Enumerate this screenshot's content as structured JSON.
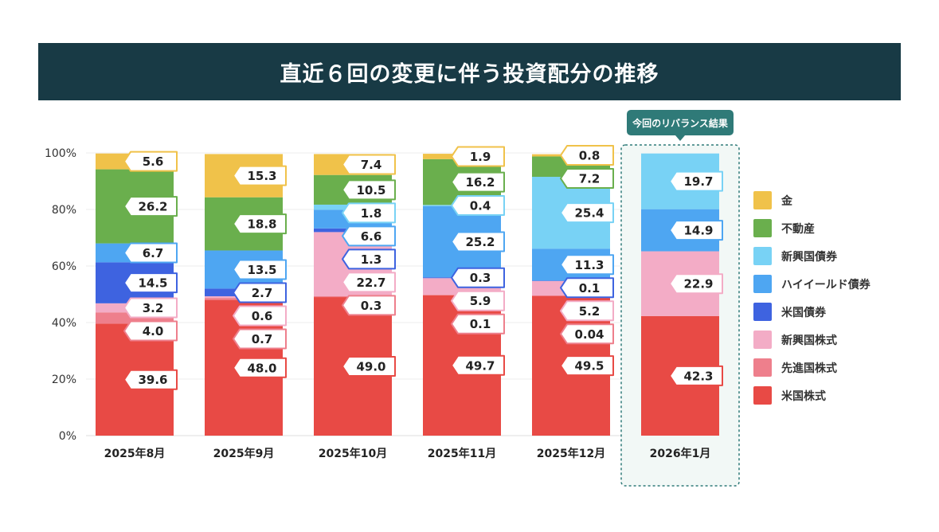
{
  "title": "直近６回の変更に伴う投資配分の推移",
  "callout_label": "今回のリバランス結果",
  "chart_data": {
    "type": "bar",
    "stacked": true,
    "title": "直近６回の変更に伴う投資配分の推移",
    "categories": [
      "2025年8月",
      "2025年9月",
      "2025年10月",
      "2025年11月",
      "2025年12月",
      "2026年1月"
    ],
    "y_ticks": [
      "0%",
      "20%",
      "40%",
      "60%",
      "80%",
      "100%"
    ],
    "ylim": [
      0,
      100
    ],
    "grid": true,
    "legend_position": "right",
    "highlight_category": "2026年1月",
    "series": [
      {
        "name": "米国株式",
        "color": "#e84a45",
        "values": [
          39.6,
          48.0,
          49.0,
          49.7,
          49.5,
          42.3
        ],
        "labels": [
          "39.6",
          "48.0",
          "49.0",
          "49.7",
          "49.5",
          "42.3"
        ]
      },
      {
        "name": "先進国株式",
        "color": "#ee7f8c",
        "values": [
          4.0,
          0.7,
          0.3,
          0.1,
          0.04,
          0
        ],
        "labels": [
          "4.0",
          "0.7",
          "0.3",
          "0.1",
          "0.04",
          ""
        ]
      },
      {
        "name": "新興国株式",
        "color": "#f3acc6",
        "values": [
          3.2,
          0.6,
          22.7,
          5.9,
          5.2,
          22.9
        ],
        "labels": [
          "3.2",
          "0.6",
          "22.7",
          "5.9",
          "5.2",
          "22.9"
        ]
      },
      {
        "name": "米国債券",
        "color": "#3e63e0",
        "values": [
          14.5,
          2.7,
          1.3,
          0.3,
          0.1,
          0
        ],
        "labels": [
          "14.5",
          "2.7",
          "1.3",
          "0.3",
          "0.1",
          ""
        ]
      },
      {
        "name": "ハイイールド債券",
        "color": "#4ea6f2",
        "values": [
          6.7,
          13.5,
          6.6,
          25.2,
          11.3,
          14.9
        ],
        "labels": [
          "6.7",
          "13.5",
          "6.6",
          "25.2",
          "11.3",
          "14.9"
        ]
      },
      {
        "name": "新興国債券",
        "color": "#78d2f5",
        "values": [
          0,
          0,
          1.8,
          0.4,
          25.4,
          19.7
        ],
        "labels": [
          "",
          "",
          "1.8",
          "0.4",
          "25.4",
          "19.7"
        ]
      },
      {
        "name": "不動産",
        "color": "#6aaf4d",
        "values": [
          26.2,
          18.8,
          10.5,
          16.2,
          7.2,
          0
        ],
        "labels": [
          "26.2",
          "18.8",
          "10.5",
          "16.2",
          "7.2",
          ""
        ]
      },
      {
        "name": "金",
        "color": "#f0c24a",
        "values": [
          5.6,
          15.3,
          7.4,
          1.9,
          0.8,
          0
        ],
        "labels": [
          "5.6",
          "15.3",
          "7.4",
          "1.9",
          "0.8",
          ""
        ]
      }
    ],
    "legend_order": [
      "金",
      "不動産",
      "新興国債券",
      "ハイイールド債券",
      "米国債券",
      "新興国株式",
      "先進国株式",
      "米国株式"
    ]
  }
}
